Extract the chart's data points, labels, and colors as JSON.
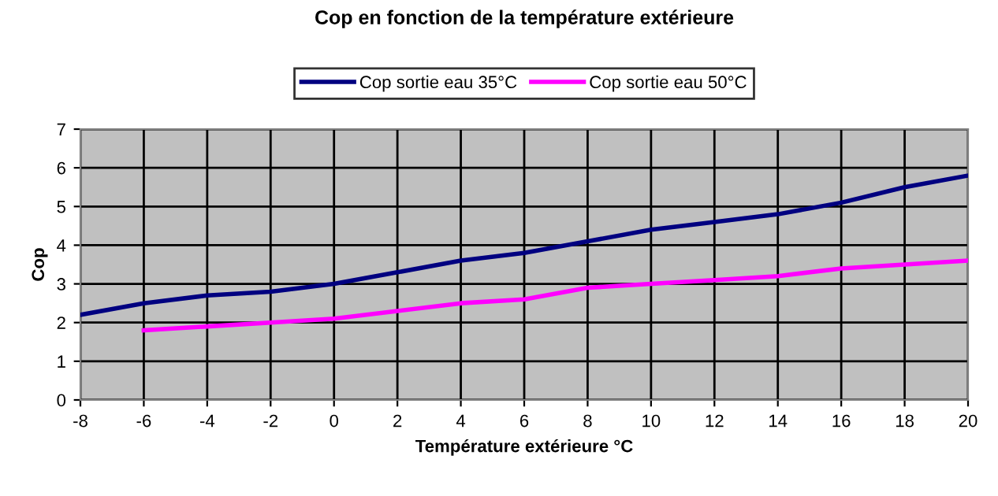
{
  "chart_data": {
    "type": "line",
    "title": "Cop en fonction de la température extérieure",
    "xlabel": "Température extérieure °C",
    "ylabel": "Cop",
    "series": [
      {
        "name": "Cop sortie eau 35°C",
        "color": "#000080",
        "x": [
          -8,
          -6,
          -4,
          -2,
          0,
          2,
          4,
          6,
          8,
          10,
          12,
          14,
          16,
          18,
          20
        ],
        "values": [
          2.2,
          2.5,
          2.7,
          2.8,
          3.0,
          3.3,
          3.6,
          3.8,
          4.1,
          4.4,
          4.6,
          4.8,
          5.1,
          5.5,
          5.8
        ]
      },
      {
        "name": "Cop sortie eau 50°C",
        "color": "#ff00ff",
        "x": [
          -6,
          -4,
          -2,
          0,
          2,
          4,
          6,
          8,
          10,
          12,
          14,
          16,
          18,
          20
        ],
        "values": [
          1.8,
          1.9,
          2.0,
          2.1,
          2.3,
          2.5,
          2.6,
          2.9,
          3.0,
          3.1,
          3.2,
          3.4,
          3.5,
          3.6
        ]
      }
    ],
    "xlim": [
      -8,
      20
    ],
    "xticks": [
      -8,
      -6,
      -4,
      -2,
      0,
      2,
      4,
      6,
      8,
      10,
      12,
      14,
      16,
      18,
      20
    ],
    "ylim": [
      0,
      7
    ],
    "yticks": [
      0,
      1,
      2,
      3,
      4,
      5,
      6,
      7
    ],
    "grid": true,
    "legend": "top",
    "marker": "none",
    "line_style": "solid"
  }
}
